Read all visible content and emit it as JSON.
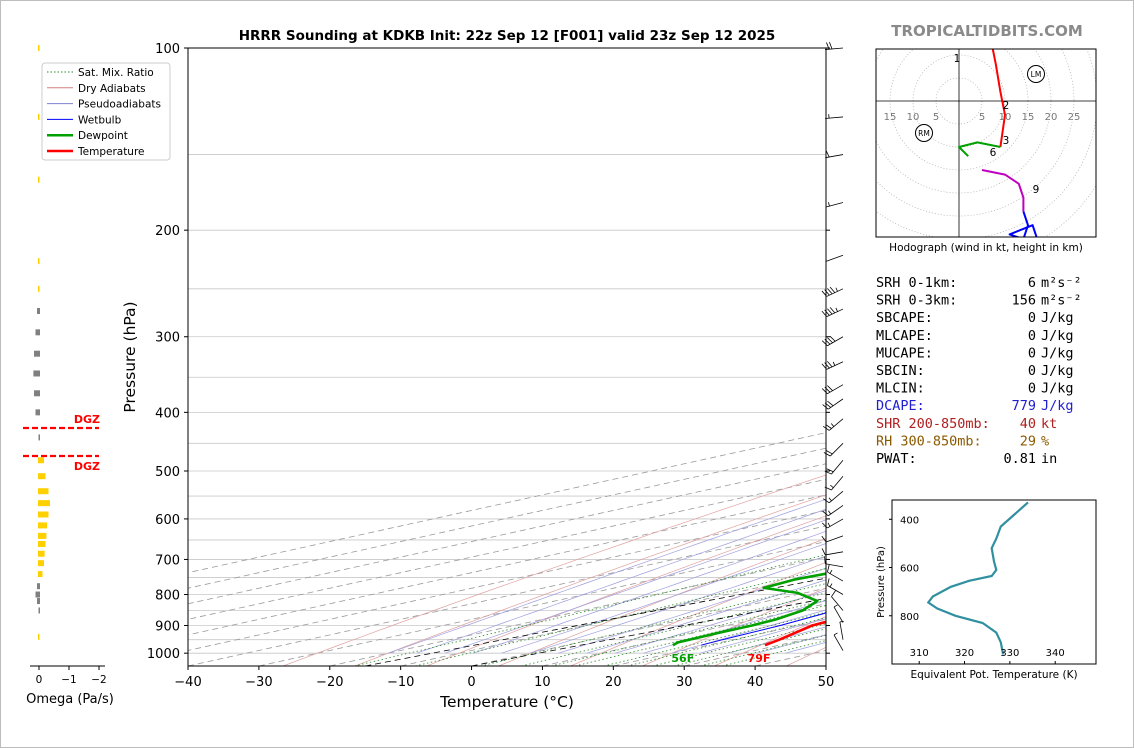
{
  "figure": {
    "title": "HRRR Sounding at KDKB Init: 22z Sep 12 [F001] valid 23z Sep 12 2025",
    "watermark": "TROPICALTIDBITS.COM"
  },
  "chart_data": [
    {
      "id": "skewt",
      "type": "line",
      "xlabel": "Temperature (°C)",
      "ylabel": "Pressure (hPa)",
      "xlim": [
        -40,
        50
      ],
      "ylim": [
        1050,
        100
      ],
      "y_scale": "log",
      "x_ticks": [
        "−40",
        "−30",
        "−20",
        "−10",
        "0",
        "10",
        "20",
        "30",
        "40",
        "50"
      ],
      "y_ticks": [
        "100",
        "200",
        "300",
        "400",
        "500",
        "600",
        "700",
        "800",
        "900",
        "1000"
      ],
      "legend": {
        "placement": "top-left",
        "entries": [
          {
            "label": "Sat. Mix. Ratio",
            "color": "#2a8a2a",
            "style": "dotted"
          },
          {
            "label": "Dry Adiabats",
            "color": "#d08080",
            "style": "solid"
          },
          {
            "label": "Pseudoadiabats",
            "color": "#8080d0",
            "style": "solid"
          },
          {
            "label": "Wetbulb",
            "color": "#0000ff",
            "style": "solid"
          },
          {
            "label": "Dewpoint",
            "color": "#00a000",
            "style": "solid"
          },
          {
            "label": "Temperature",
            "color": "#ff0000",
            "style": "solid"
          }
        ]
      },
      "mixing_ratio_labels": [
        "1",
        "2",
        "4",
        "6",
        "8",
        "10",
        "13",
        "16",
        "20",
        "24",
        "30",
        "36"
      ],
      "surface_labels": {
        "dewpoint": "56F",
        "temperature": "79F"
      },
      "series": [
        {
          "name": "Temperature",
          "color": "#ff0000",
          "points": [
            [
              28.0,
              970
            ],
            [
              26.5,
              950
            ],
            [
              22,
              900
            ],
            [
              20.5,
              850
            ],
            [
              20.8,
              820
            ],
            [
              21.3,
              775
            ],
            [
              20.5,
              730
            ],
            [
              18.5,
              680
            ],
            [
              15.8,
              630
            ],
            [
              12,
              570
            ],
            [
              8,
              520
            ],
            [
              4.5,
              470
            ],
            [
              1,
              430
            ],
            [
              -3,
              400
            ],
            [
              -6,
              370
            ],
            [
              -9,
              340
            ],
            [
              -14,
              305
            ],
            [
              -18,
              275
            ],
            [
              -23,
              245
            ],
            [
              -27,
              228
            ],
            [
              -28,
              205
            ],
            [
              -28.5,
              180
            ],
            [
              -26,
              165
            ],
            [
              -24,
              152
            ],
            [
              -17.5,
              130
            ],
            [
              -10,
              112
            ],
            [
              -6,
              100
            ]
          ]
        },
        {
          "name": "Dewpoint",
          "color": "#00a000",
          "points": [
            [
              15,
              970
            ],
            [
              14,
              960
            ],
            [
              13.5,
              925
            ],
            [
              13.5,
              900
            ],
            [
              13,
              880
            ],
            [
              11,
              850
            ],
            [
              7,
              820
            ],
            [
              -1,
              795
            ],
            [
              -9,
              780
            ],
            [
              -10,
              755
            ],
            [
              -9,
              730
            ],
            [
              -7,
              700
            ],
            [
              -7,
              670
            ],
            [
              -3,
              650
            ],
            [
              2,
              630
            ],
            [
              3.5,
              610
            ],
            [
              3,
              580
            ],
            [
              1,
              555
            ],
            [
              -3.5,
              510
            ],
            [
              -4.5,
              480
            ],
            [
              -6,
              430
            ],
            [
              -8,
              400
            ],
            [
              -10.5,
              380
            ],
            [
              -16,
              360
            ],
            [
              -16.5,
              335
            ],
            [
              -14,
              315
            ],
            [
              -15,
              292
            ],
            [
              -18.5,
              270
            ],
            [
              -19,
              240
            ],
            [
              -22.5,
              208
            ],
            [
              -22,
              180
            ],
            [
              -21.5,
              152
            ],
            [
              -26.5,
              122
            ],
            [
              -21,
              100
            ]
          ]
        },
        {
          "name": "Wetbulb",
          "color": "#0000ff",
          "points": [
            [
              19,
              970
            ],
            [
              18.5,
              950
            ],
            [
              17.5,
              900
            ],
            [
              16,
              860
            ],
            [
              12.5,
              830
            ],
            [
              10,
              810
            ],
            [
              8,
              790
            ],
            [
              6.5,
              770
            ],
            [
              6.5,
              730
            ],
            [
              6.5,
              700
            ],
            [
              7,
              670
            ],
            [
              7.5,
              650
            ],
            [
              8.5,
              620
            ],
            [
              8,
              590
            ],
            [
              7,
              570
            ],
            [
              5.5,
              540
            ],
            [
              3.5,
              510
            ],
            [
              1.5,
              470
            ],
            [
              0,
              450
            ],
            [
              -3,
              410
            ],
            [
              -6,
              375
            ],
            [
              -9,
              345
            ],
            [
              -12.5,
              305
            ],
            [
              -16,
              280
            ],
            [
              -20,
              250
            ],
            [
              -23,
              228
            ]
          ]
        }
      ],
      "dgz_label": "DGZ"
    },
    {
      "id": "omega",
      "type": "bar",
      "xlabel": "Omega (Pa/s)",
      "x_ticks": [
        "0",
        "−1",
        "−2"
      ],
      "color_positive": "#ffd000",
      "color_negative": "#808080",
      "values": [
        [
          100,
          0.05
        ],
        [
          130,
          0.05
        ],
        [
          165,
          0.05
        ],
        [
          225,
          0.05
        ],
        [
          250,
          0.05
        ],
        [
          272,
          -0.1
        ],
        [
          295,
          -0.15
        ],
        [
          320,
          -0.2
        ],
        [
          345,
          -0.22
        ],
        [
          372,
          -0.2
        ],
        [
          400,
          -0.15
        ],
        [
          440,
          -0.05
        ],
        [
          480,
          0.2
        ],
        [
          510,
          0.25
        ],
        [
          540,
          0.35
        ],
        [
          565,
          0.4
        ],
        [
          590,
          0.35
        ],
        [
          615,
          0.3
        ],
        [
          640,
          0.28
        ],
        [
          660,
          0.25
        ],
        [
          685,
          0.22
        ],
        [
          710,
          0.2
        ],
        [
          740,
          0.15
        ],
        [
          775,
          -0.1
        ],
        [
          800,
          -0.15
        ],
        [
          820,
          -0.1
        ],
        [
          850,
          -0.05
        ],
        [
          940,
          0.05
        ]
      ]
    },
    {
      "id": "hodograph",
      "type": "line",
      "xlabel": "Hodograph (wind in kt, height in km)",
      "ring_labels": [
        "15",
        "10",
        "5",
        "5",
        "10",
        "15",
        "20",
        "25"
      ],
      "markers": [
        "1",
        "2",
        "3",
        "6",
        "9",
        "RM",
        "LM"
      ],
      "segments": [
        {
          "color": "#ff0000",
          "points": [
            [
              -7,
              12
            ],
            [
              -8,
              15
            ],
            [
              -7,
              18
            ],
            [
              -3,
              20
            ],
            [
              1,
              21
            ],
            [
              4,
              19
            ],
            [
              7,
              13
            ],
            [
              8,
              8
            ],
            [
              9,
              2
            ],
            [
              10,
              -3
            ],
            [
              9,
              -10
            ]
          ]
        },
        {
          "color": "#00a000",
          "points": [
            [
              9,
              -10
            ],
            [
              4,
              -9
            ],
            [
              0,
              -10
            ],
            [
              2,
              -12
            ]
          ]
        },
        {
          "color": "#c000c0",
          "points": [
            [
              5,
              -15
            ],
            [
              10,
              -16
            ],
            [
              13,
              -18
            ],
            [
              14,
              -21
            ],
            [
              14,
              -24
            ]
          ]
        },
        {
          "color": "#0000ff",
          "points": [
            [
              14,
              -24
            ],
            [
              15,
              -27
            ],
            [
              14,
              -30
            ],
            [
              11,
              -29
            ],
            [
              16,
              -27
            ],
            [
              17,
              -30
            ]
          ]
        }
      ]
    },
    {
      "id": "theta_e",
      "type": "line",
      "xlabel": "Equivalent Pot. Temperature (K)",
      "ylabel": "Pressure (hPa)",
      "x_ticks": [
        "310",
        "320",
        "330",
        "340"
      ],
      "y_ticks": [
        "400",
        "600",
        "800"
      ],
      "color": "#3090a0",
      "points": [
        [
          334,
          330
        ],
        [
          331,
          380
        ],
        [
          328,
          430
        ],
        [
          327,
          480
        ],
        [
          326,
          520
        ],
        [
          326.5,
          575
        ],
        [
          327,
          610
        ],
        [
          326,
          635
        ],
        [
          321,
          655
        ],
        [
          317,
          680
        ],
        [
          313,
          720
        ],
        [
          312,
          745
        ],
        [
          314,
          770
        ],
        [
          318,
          800
        ],
        [
          324,
          830
        ],
        [
          327,
          870
        ],
        [
          328,
          910
        ],
        [
          328.5,
          960
        ]
      ]
    }
  ],
  "indices": [
    {
      "label": "SRH 0-1km:",
      "value": "6",
      "unit": "m²s⁻²",
      "color": "#000000"
    },
    {
      "label": "SRH 0-3km:",
      "value": "156",
      "unit": "m²s⁻²",
      "color": "#000000"
    },
    {
      "label": "SBCAPE:",
      "value": "0",
      "unit": "J/kg",
      "color": "#000000"
    },
    {
      "label": "MLCAPE:",
      "value": "0",
      "unit": "J/kg",
      "color": "#000000"
    },
    {
      "label": "MUCAPE:",
      "value": "0",
      "unit": "J/kg",
      "color": "#000000"
    },
    {
      "label": "SBCIN:",
      "value": "0",
      "unit": "J/kg",
      "color": "#000000"
    },
    {
      "label": "MLCIN:",
      "value": "0",
      "unit": "J/kg",
      "color": "#000000"
    },
    {
      "label": "DCAPE:",
      "value": "779",
      "unit": "J/kg",
      "color": "#2020d0"
    },
    {
      "label": "SHR 200-850mb:",
      "value": "40",
      "unit": "kt",
      "color": "#b02020"
    },
    {
      "label": "RH 300-850mb:",
      "value": "29",
      "unit": "%",
      "color": "#8a5a00"
    },
    {
      "label": "PWAT:",
      "value": "0.81",
      "unit": "in",
      "color": "#000000"
    }
  ]
}
